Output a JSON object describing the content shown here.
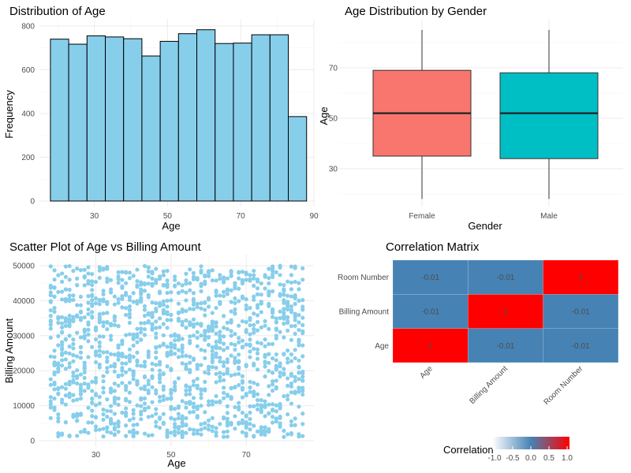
{
  "chart_data": [
    {
      "type": "bar",
      "title": "Distribution of Age",
      "xlabel": "Age",
      "ylabel": "Frequency",
      "bins": [
        {
          "x0": 18,
          "x1": 23,
          "count": 740
        },
        {
          "x0": 23,
          "x1": 28,
          "count": 717
        },
        {
          "x0": 28,
          "x1": 33,
          "count": 755
        },
        {
          "x0": 33,
          "x1": 38,
          "count": 750
        },
        {
          "x0": 38,
          "x1": 43,
          "count": 742
        },
        {
          "x0": 43,
          "x1": 48,
          "count": 663
        },
        {
          "x0": 48,
          "x1": 53,
          "count": 730
        },
        {
          "x0": 53,
          "x1": 58,
          "count": 765
        },
        {
          "x0": 58,
          "x1": 63,
          "count": 783
        },
        {
          "x0": 63,
          "x1": 68,
          "count": 720
        },
        {
          "x0": 68,
          "x1": 73,
          "count": 722
        },
        {
          "x0": 73,
          "x1": 78,
          "count": 760
        },
        {
          "x0": 78,
          "x1": 83,
          "count": 760
        },
        {
          "x0": 83,
          "x1": 88,
          "count": 386
        }
      ],
      "xlim": [
        15,
        90
      ],
      "ylim": [
        0,
        800
      ],
      "xticks": [
        30,
        50,
        70,
        90
      ],
      "yticks": [
        0,
        200,
        400,
        600,
        800
      ],
      "bar_fill": "#87CEEB",
      "bar_stroke": "#000000"
    },
    {
      "type": "box",
      "title": "Age Distribution by Gender",
      "xlabel": "Gender",
      "ylabel": "Age",
      "categories": [
        "Female",
        "Male"
      ],
      "boxes": [
        {
          "min": 18,
          "q1": 35,
          "median": 52,
          "q3": 69,
          "max": 85,
          "color": "#F8766D"
        },
        {
          "min": 18,
          "q1": 34,
          "median": 52,
          "q3": 68,
          "max": 85,
          "color": "#00BFC4"
        }
      ],
      "ylim": [
        15,
        88
      ],
      "yticks": [
        30,
        50,
        70
      ]
    },
    {
      "type": "scatter",
      "title": "Scatter Plot of Age vs Billing Amount",
      "xlabel": "Age",
      "ylabel": "Billing Amount",
      "x_range": [
        18,
        85
      ],
      "y_range": [
        1000,
        50000
      ],
      "xlim": [
        15,
        88
      ],
      "ylim": [
        0,
        51500
      ],
      "xticks": [
        30,
        50,
        70
      ],
      "yticks": [
        0,
        10000,
        20000,
        30000,
        40000,
        50000
      ],
      "point_color": "#87CEEB"
    },
    {
      "type": "heatmap",
      "title": "Correlation Matrix",
      "x_categories": [
        "Age",
        "Billing Amount",
        "Room Number"
      ],
      "y_categories": [
        "Age",
        "Billing Amount",
        "Room Number"
      ],
      "values": [
        [
          1,
          -0.01,
          -0.01
        ],
        [
          -0.01,
          1,
          -0.01
        ],
        [
          -0.01,
          -0.01,
          1
        ]
      ],
      "cell_labels": [
        [
          "1",
          "-0.01",
          "-0.01"
        ],
        [
          "-0.01",
          "1",
          "-0.01"
        ],
        [
          "-0.01",
          "-0.01",
          "1"
        ]
      ],
      "legend": {
        "title": "Correlation",
        "ticks": [
          "-1.0",
          "-0.5",
          "0.0",
          "0.5",
          "1.0"
        ],
        "low_color": "#FFFFFF",
        "mid_color": "#4682B4",
        "high_color": "#FF0000",
        "placement": "bottom"
      }
    }
  ]
}
